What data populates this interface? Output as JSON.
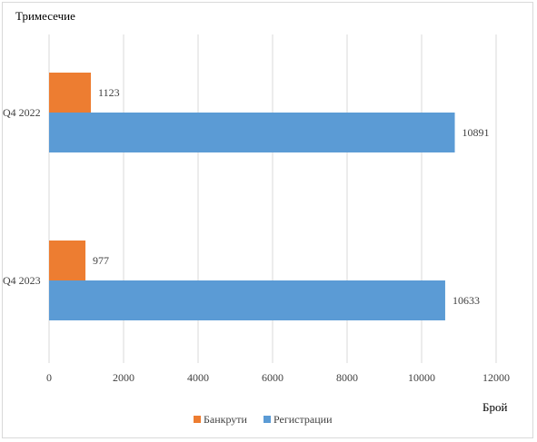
{
  "chart_data": {
    "type": "bar",
    "orientation": "horizontal",
    "categories": [
      "Q4 2022",
      "Q4 2023"
    ],
    "series": [
      {
        "name": "Банкрути",
        "color": "#ED7D31",
        "values": [
          1123,
          977
        ]
      },
      {
        "name": "Регистрации",
        "color": "#5B9BD5",
        "values": [
          10891,
          10633
        ]
      }
    ],
    "category_axis_title": "Тримесечие",
    "value_axis_title": "Брой",
    "xlim": [
      0,
      12000
    ],
    "xticks": [
      0,
      2000,
      4000,
      6000,
      8000,
      10000,
      12000
    ],
    "grid": "vertical",
    "legend_position": "bottom",
    "data_labels": true
  }
}
